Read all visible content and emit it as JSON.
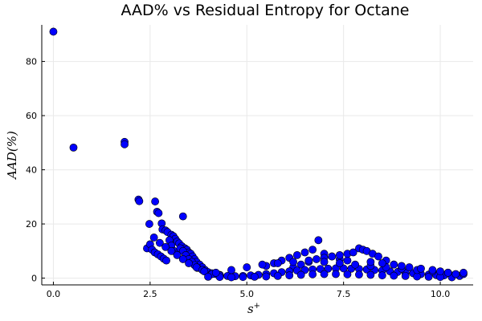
{
  "chart_data": {
    "type": "scatter",
    "title": "AAD% vs Residual Entropy for Octane",
    "xlabel": "s",
    "xlabel_superscript": "+",
    "ylabel": "AAD(%)",
    "xlim": [
      -0.3,
      10.85
    ],
    "ylim": [
      -2.5,
      93.5
    ],
    "xticks": [
      0.0,
      2.5,
      5.0,
      7.5,
      10.0
    ],
    "xtick_labels": [
      "0.0",
      "2.5",
      "5.0",
      "7.5",
      "10.0"
    ],
    "yticks": [
      0,
      20,
      40,
      60,
      80
    ],
    "ytick_labels": [
      "0",
      "20",
      "40",
      "60",
      "80"
    ],
    "grid": true,
    "legend": "none",
    "marker_color": "#0000ff",
    "series": [
      {
        "x": [
          0.0,
          0.52,
          1.84,
          1.84,
          2.2,
          2.22,
          2.63,
          2.68,
          2.72,
          2.8,
          2.82,
          2.9,
          2.95,
          3.05,
          3.1,
          3.15,
          3.2,
          3.25,
          3.32,
          3.35,
          3.4,
          3.45,
          3.5,
          3.55,
          3.6,
          3.65,
          3.7,
          3.78,
          3.85,
          3.92,
          2.42,
          2.5,
          2.55,
          2.62,
          2.7,
          2.78,
          2.85,
          2.92,
          3.0,
          3.05,
          3.12,
          3.2,
          3.28,
          3.35,
          3.42,
          3.5,
          3.58,
          3.65,
          3.72,
          2.48,
          2.6,
          2.75,
          2.9,
          3.05,
          3.2,
          3.35,
          3.5,
          3.7,
          3.85,
          4.0,
          4.1,
          4.2,
          4.3,
          5.5,
          5.7,
          5.9,
          6.1,
          6.3,
          6.5,
          6.7,
          6.85,
          7.0,
          7.2,
          7.4,
          7.6,
          6.2,
          6.4,
          6.6,
          6.8,
          7.0,
          7.2,
          7.4,
          7.6,
          7.75,
          7.9,
          8.0,
          8.1,
          8.25,
          8.4,
          8.6,
          8.8,
          3.9,
          4.1,
          4.3,
          4.5,
          4.7,
          4.9,
          5.1,
          5.3,
          5.5,
          5.7,
          5.9,
          6.1,
          6.3,
          6.5,
          6.7,
          6.9,
          7.1,
          7.3,
          7.5,
          7.7,
          7.9,
          8.1,
          8.3,
          8.5,
          8.7,
          8.9,
          9.1,
          9.3,
          9.5,
          9.7,
          9.9,
          10.1,
          10.3,
          10.5,
          4.0,
          4.3,
          4.6,
          4.9,
          5.2,
          5.5,
          5.8,
          6.1,
          6.4,
          6.7,
          7.0,
          7.3,
          7.6,
          7.9,
          8.2,
          8.5,
          8.8,
          9.1,
          9.4,
          9.7,
          10.0,
          10.3,
          4.2,
          4.6,
          5.0,
          5.4,
          5.8,
          6.2,
          6.6,
          7.0,
          7.4,
          7.8,
          8.2,
          8.6,
          9.0,
          9.4,
          9.8,
          10.2,
          10.6,
          8.2,
          8.5,
          8.8,
          9.0,
          9.2,
          9.5,
          9.8,
          10.0,
          10.2,
          10.4,
          10.6
        ],
        "y": [
          91.0,
          48.2,
          50.3,
          49.4,
          29.0,
          28.4,
          28.3,
          24.5,
          24.0,
          20.2,
          18.0,
          17.6,
          17.0,
          16.0,
          15.5,
          14.5,
          13.5,
          12.8,
          11.8,
          22.8,
          11.0,
          10.5,
          9.5,
          9.0,
          8.0,
          7.0,
          6.0,
          5.0,
          4.0,
          3.0,
          11.0,
          12.5,
          10.5,
          9.5,
          8.8,
          8.0,
          7.2,
          6.5,
          14.0,
          12.0,
          10.0,
          9.0,
          11.0,
          10.0,
          8.5,
          7.0,
          6.0,
          4.8,
          3.8,
          20.0,
          15.0,
          13.0,
          11.5,
          10.0,
          8.5,
          7.0,
          5.5,
          4.0,
          3.0,
          2.2,
          1.8,
          1.5,
          1.2,
          4.5,
          5.5,
          6.5,
          7.5,
          8.5,
          9.5,
          10.5,
          14.0,
          9.0,
          8.0,
          7.0,
          6.5,
          4.0,
          5.0,
          6.0,
          7.0,
          7.5,
          8.0,
          8.5,
          9.0,
          9.5,
          11.0,
          10.5,
          10.0,
          9.0,
          8.0,
          6.5,
          5.0,
          2.5,
          1.5,
          1.0,
          0.8,
          0.7,
          0.8,
          1.0,
          1.2,
          1.5,
          1.8,
          2.2,
          2.5,
          2.8,
          3.0,
          3.2,
          3.4,
          3.5,
          3.6,
          3.6,
          3.5,
          3.4,
          3.2,
          3.0,
          2.8,
          2.5,
          2.3,
          2.0,
          1.8,
          1.5,
          1.3,
          1.1,
          1.0,
          0.9,
          0.8,
          0.5,
          0.4,
          0.3,
          0.4,
          0.5,
          0.6,
          0.8,
          1.0,
          1.2,
          1.4,
          1.5,
          1.5,
          1.4,
          1.3,
          1.2,
          1.0,
          0.9,
          0.8,
          0.6,
          0.5,
          0.4,
          0.3,
          2.0,
          3.0,
          4.0,
          5.0,
          5.5,
          6.0,
          6.5,
          6.0,
          5.5,
          5.0,
          4.5,
          4.0,
          3.5,
          3.0,
          2.5,
          2.0,
          1.5,
          6.0,
          5.5,
          5.0,
          4.5,
          4.0,
          3.5,
          3.0,
          2.5,
          2.0,
          1.5,
          2.0
        ]
      }
    ]
  }
}
